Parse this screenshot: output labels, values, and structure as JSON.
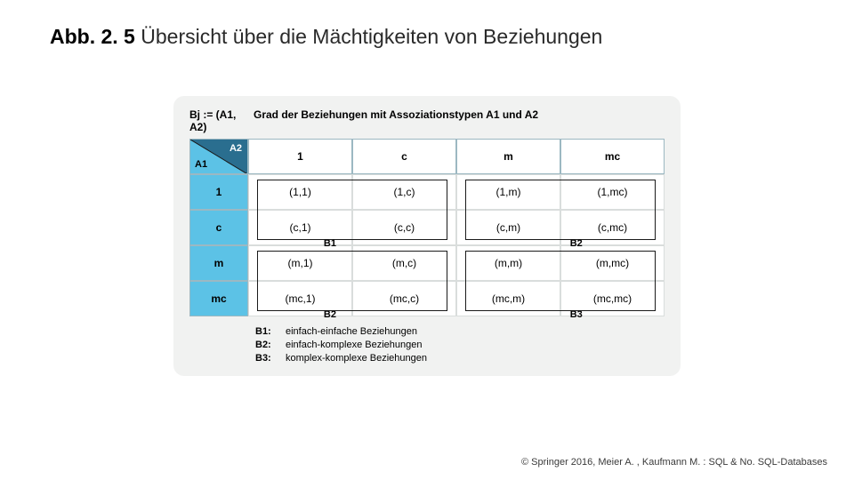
{
  "title": {
    "prefix": "Abb. 2. 5",
    "rest": " Übersicht über die Mächtigkeiten von Beziehungen"
  },
  "colors": {
    "panel_bg": "#f1f2f1",
    "header_bg": "#5cc2e6",
    "cell_border": "#d9dddc",
    "box_border": "#1a1a1a",
    "page_bg": "#ffffff"
  },
  "header": {
    "lhs": "Bj := (A1, A2)",
    "rhs": "Grad der Beziehungen mit Assoziationstypen A1 und A2"
  },
  "corner": {
    "left": "A1",
    "right": "A2"
  },
  "columns": [
    "1",
    "c",
    "m",
    "mc"
  ],
  "rows": [
    "1",
    "c",
    "m",
    "mc"
  ],
  "cells": [
    [
      "(1,1)",
      "(1,c)",
      "(1,m)",
      "(1,mc)"
    ],
    [
      "(c,1)",
      "(c,c)",
      "(c,m)",
      "(c,mc)"
    ],
    [
      "(m,1)",
      "(m,c)",
      "(m,m)",
      "(m,mc)"
    ],
    [
      "(mc,1)",
      "(mc,c)",
      "(mc,m)",
      "(mc,mc)"
    ]
  ],
  "regions": [
    {
      "label": "B1",
      "col_start": 1,
      "col_end": 2,
      "row_start": 1,
      "row_end": 2,
      "label_side": "bottom-left"
    },
    {
      "label": "B2",
      "col_start": 3,
      "col_end": 4,
      "row_start": 1,
      "row_end": 2,
      "label_side": "bottom-right"
    },
    {
      "label": "B2",
      "col_start": 1,
      "col_end": 2,
      "row_start": 3,
      "row_end": 4,
      "label_side": "bottom-left"
    },
    {
      "label": "B3",
      "col_start": 3,
      "col_end": 4,
      "row_start": 3,
      "row_end": 4,
      "label_side": "bottom-right"
    }
  ],
  "legend": [
    {
      "key": "B1:",
      "text": "einfach-einfache Beziehungen"
    },
    {
      "key": "B2:",
      "text": "einfach-komplexe Beziehungen"
    },
    {
      "key": "B3:",
      "text": "komplex-komplexe Beziehungen"
    }
  ],
  "copyright": "© Springer 2016, Meier A. , Kaufmann M. : SQL & No. SQL-Databases"
}
